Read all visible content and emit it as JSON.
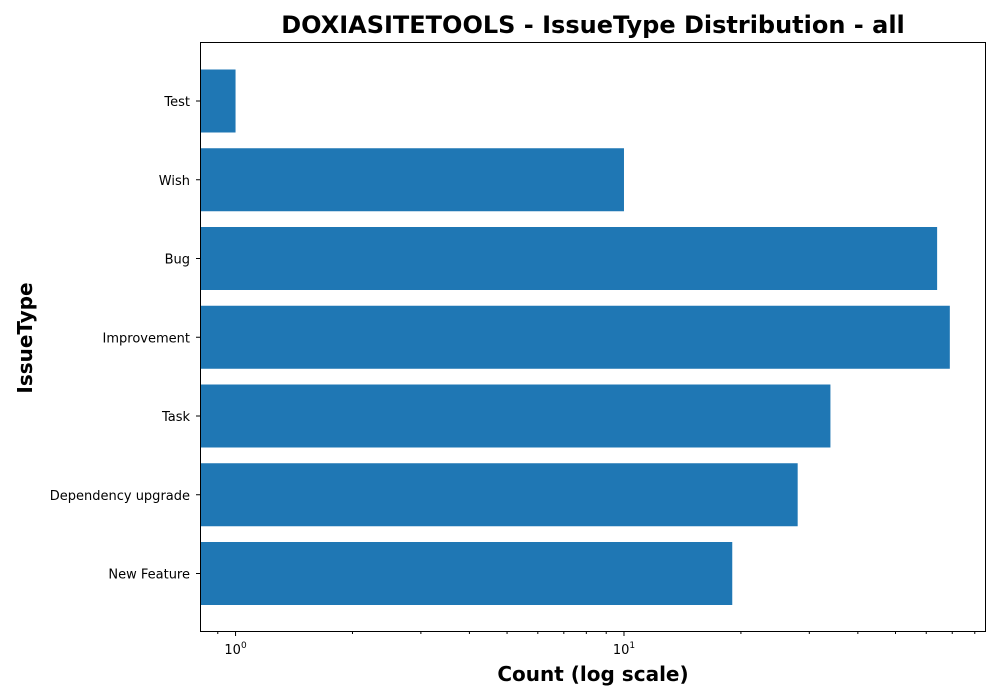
{
  "chart_data": {
    "type": "bar",
    "orientation": "horizontal",
    "title": "DOXIASITETOOLS - IssueType Distribution - all",
    "xlabel": "Count (log scale)",
    "ylabel": "IssueType",
    "x_scale": "log",
    "xlim": [
      0.81,
      85
    ],
    "categories": [
      "Test",
      "Wish",
      "Bug",
      "Improvement",
      "Task",
      "Dependency upgrade",
      "New Feature"
    ],
    "values": [
      1,
      10,
      64,
      69,
      34,
      28,
      19
    ],
    "bar_color": "#1f77b4",
    "major_ticks": [
      {
        "value": 1,
        "base": "10",
        "exp": "0"
      },
      {
        "value": 10,
        "base": "10",
        "exp": "1"
      }
    ],
    "minor_ticks": [
      0.9,
      2,
      3,
      4,
      5,
      6,
      7,
      8,
      9,
      20,
      30,
      40,
      50,
      60,
      70,
      80
    ],
    "grid": false,
    "legend": "none"
  }
}
